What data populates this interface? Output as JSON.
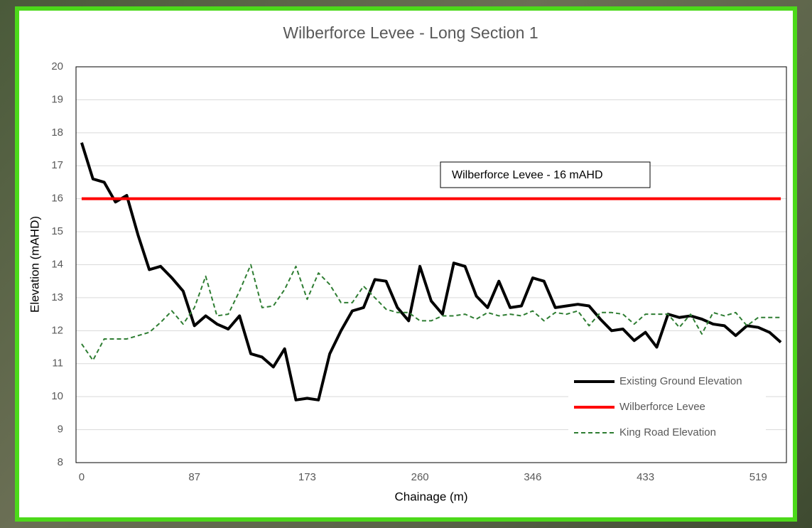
{
  "chart_data": {
    "type": "line",
    "title": "Wilberforce Levee - Long Section 1",
    "x_label": "Chainage (m)",
    "y_label": "Elevation (mAHD)",
    "categories": [
      "0",
      null,
      null,
      null,
      null,
      null,
      null,
      null,
      null,
      null,
      "87",
      null,
      null,
      null,
      null,
      null,
      null,
      null,
      null,
      null,
      "173",
      null,
      null,
      null,
      null,
      null,
      null,
      null,
      null,
      null,
      "260",
      null,
      null,
      null,
      null,
      null,
      null,
      null,
      null,
      null,
      "346",
      null,
      null,
      null,
      null,
      null,
      null,
      null,
      null,
      null,
      "433",
      null,
      null,
      null,
      null,
      null,
      null,
      null,
      null,
      null,
      "519",
      null,
      null
    ],
    "series": [
      {
        "name": "Existing Ground Elevation",
        "color": "#000000",
        "dashed": false,
        "values": [
          17.7,
          16.6,
          16.5,
          15.9,
          16.1,
          14.9,
          13.85,
          13.95,
          13.6,
          13.2,
          12.15,
          12.45,
          12.2,
          12.05,
          12.45,
          11.3,
          11.2,
          10.9,
          11.45,
          9.9,
          9.95,
          9.9,
          11.3,
          12.0,
          12.6,
          12.7,
          13.55,
          13.5,
          12.7,
          12.3,
          13.95,
          12.9,
          12.5,
          14.05,
          13.95,
          13.05,
          12.7,
          13.5,
          12.7,
          12.75,
          13.6,
          13.5,
          12.7,
          12.75,
          12.8,
          12.75,
          12.35,
          12.0,
          12.05,
          11.7,
          11.95,
          11.5,
          12.5,
          12.4,
          12.45,
          12.35,
          12.2,
          12.15,
          11.85,
          12.15,
          12.1,
          11.95,
          11.65
        ]
      },
      {
        "name": "Wilberforce Levee",
        "color": "#ff0000",
        "dashed": false,
        "values": [
          16,
          16,
          16,
          16,
          16,
          16,
          16,
          16,
          16,
          16,
          16,
          16,
          16,
          16,
          16,
          16,
          16,
          16,
          16,
          16,
          16,
          16,
          16,
          16,
          16,
          16,
          16,
          16,
          16,
          16,
          16,
          16,
          16,
          16,
          16,
          16,
          16,
          16,
          16,
          16,
          16,
          16,
          16,
          16,
          16,
          16,
          16,
          16,
          16,
          16,
          16,
          16,
          16,
          16,
          16,
          16,
          16,
          16,
          16,
          16,
          16,
          16,
          16
        ]
      },
      {
        "name": "King Road Elevation",
        "color": "#2e7d32",
        "dashed": true,
        "values": [
          11.6,
          11.1,
          11.75,
          11.75,
          11.75,
          11.85,
          11.95,
          12.25,
          12.6,
          12.2,
          12.7,
          13.65,
          12.45,
          12.5,
          13.2,
          14.0,
          12.7,
          12.75,
          13.25,
          13.95,
          12.95,
          13.75,
          13.4,
          12.85,
          12.85,
          13.35,
          13.0,
          12.65,
          12.55,
          12.55,
          12.3,
          12.3,
          12.45,
          12.45,
          12.5,
          12.35,
          12.55,
          12.45,
          12.5,
          12.45,
          12.6,
          12.3,
          12.55,
          12.5,
          12.6,
          12.15,
          12.55,
          12.55,
          12.5,
          12.2,
          12.5,
          12.5,
          12.5,
          12.1,
          12.5,
          11.9,
          12.55,
          12.45,
          12.55,
          12.15,
          12.4,
          12.4,
          12.4
        ]
      }
    ],
    "ylim": [
      8,
      20
    ],
    "yticks": [
      8,
      9,
      10,
      11,
      12,
      13,
      14,
      15,
      16,
      17,
      18,
      19,
      20
    ],
    "grid": true,
    "legend": "lower right",
    "annotation": "Wilberforce Levee - 16 mAHD"
  }
}
